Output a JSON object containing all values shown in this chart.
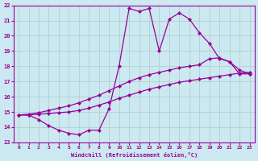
{
  "xlabel": "Windchill (Refroidissement éolien,°C)",
  "background_color": "#cce8f0",
  "line_color": "#990099",
  "grid_color": "#aacccc",
  "xlim": [
    -0.5,
    23.5
  ],
  "ylim": [
    13,
    22
  ],
  "xticks": [
    0,
    1,
    2,
    3,
    4,
    5,
    6,
    7,
    8,
    9,
    10,
    11,
    12,
    13,
    14,
    15,
    16,
    17,
    18,
    19,
    20,
    21,
    22,
    23
  ],
  "yticks": [
    13,
    14,
    15,
    16,
    17,
    18,
    19,
    20,
    21,
    22
  ],
  "curve_main_x": [
    0,
    1,
    2,
    3,
    4,
    5,
    6,
    7,
    8,
    9,
    10,
    11,
    12,
    13,
    14,
    15,
    16,
    17,
    18,
    19,
    20,
    21,
    22,
    23
  ],
  "curve_main_y": [
    14.8,
    14.8,
    14.5,
    14.1,
    13.8,
    13.6,
    13.5,
    13.8,
    13.8,
    15.2,
    18.0,
    21.8,
    21.6,
    21.8,
    19.0,
    21.1,
    21.5,
    21.1,
    20.2,
    19.5,
    18.5,
    18.3,
    17.5,
    17.5
  ],
  "curve_mid_x": [
    0,
    1,
    2,
    3,
    4,
    5,
    6,
    7,
    8,
    9,
    10,
    11,
    12,
    13,
    14,
    15,
    16,
    17,
    18,
    19,
    20,
    21,
    22,
    23
  ],
  "curve_mid_y": [
    14.8,
    14.85,
    14.95,
    15.1,
    15.25,
    15.4,
    15.6,
    15.85,
    16.1,
    16.4,
    16.7,
    17.0,
    17.25,
    17.45,
    17.6,
    17.75,
    17.9,
    18.0,
    18.1,
    18.5,
    18.55,
    18.3,
    17.75,
    17.5
  ],
  "curve_bot_x": [
    0,
    1,
    2,
    3,
    4,
    5,
    6,
    7,
    8,
    9,
    10,
    11,
    12,
    13,
    14,
    15,
    16,
    17,
    18,
    19,
    20,
    21,
    22,
    23
  ],
  "curve_bot_y": [
    14.8,
    14.8,
    14.85,
    14.9,
    14.95,
    15.0,
    15.1,
    15.25,
    15.45,
    15.65,
    15.9,
    16.1,
    16.3,
    16.5,
    16.65,
    16.8,
    16.95,
    17.05,
    17.15,
    17.25,
    17.35,
    17.45,
    17.55,
    17.6
  ]
}
